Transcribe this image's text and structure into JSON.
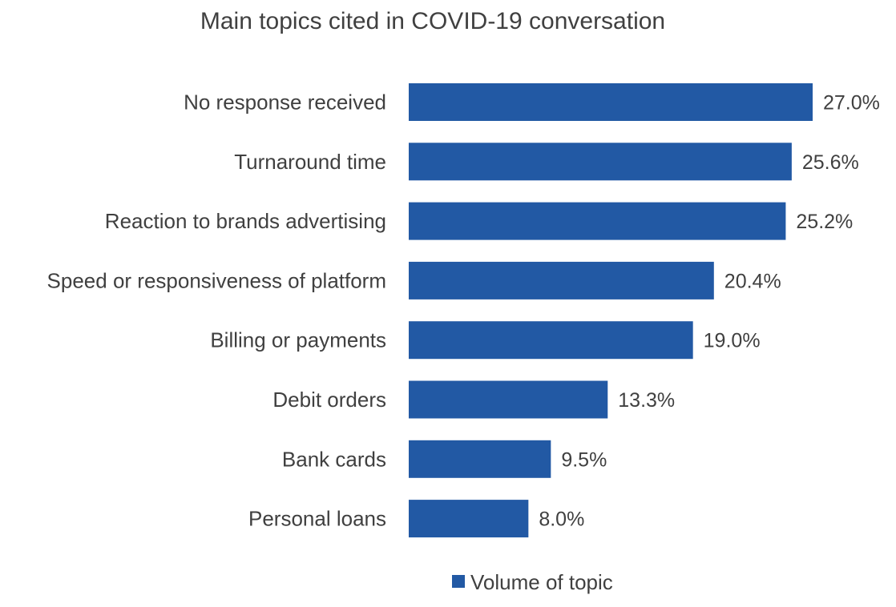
{
  "chart_data": {
    "type": "bar",
    "orientation": "horizontal",
    "title": "Main topics cited in COVID-19 conversation",
    "categories": [
      "No response received",
      "Turnaround time",
      "Reaction to brands advertising",
      "Speed or responsiveness of platform",
      "Billing or payments",
      "Debit orders",
      "Bank cards",
      "Personal loans"
    ],
    "series": [
      {
        "name": "Volume of topic",
        "values": [
          27.0,
          25.6,
          25.2,
          20.4,
          19.0,
          13.3,
          9.5,
          8.0
        ],
        "labels": [
          "27.0%",
          "25.6%",
          "25.2%",
          "20.4%",
          "19.0%",
          "13.3%",
          "9.5%",
          "8.0%"
        ],
        "color": "#2259a4"
      }
    ],
    "xlim": [
      0,
      27.0
    ],
    "grid": false,
    "legend": "bottom-center"
  }
}
